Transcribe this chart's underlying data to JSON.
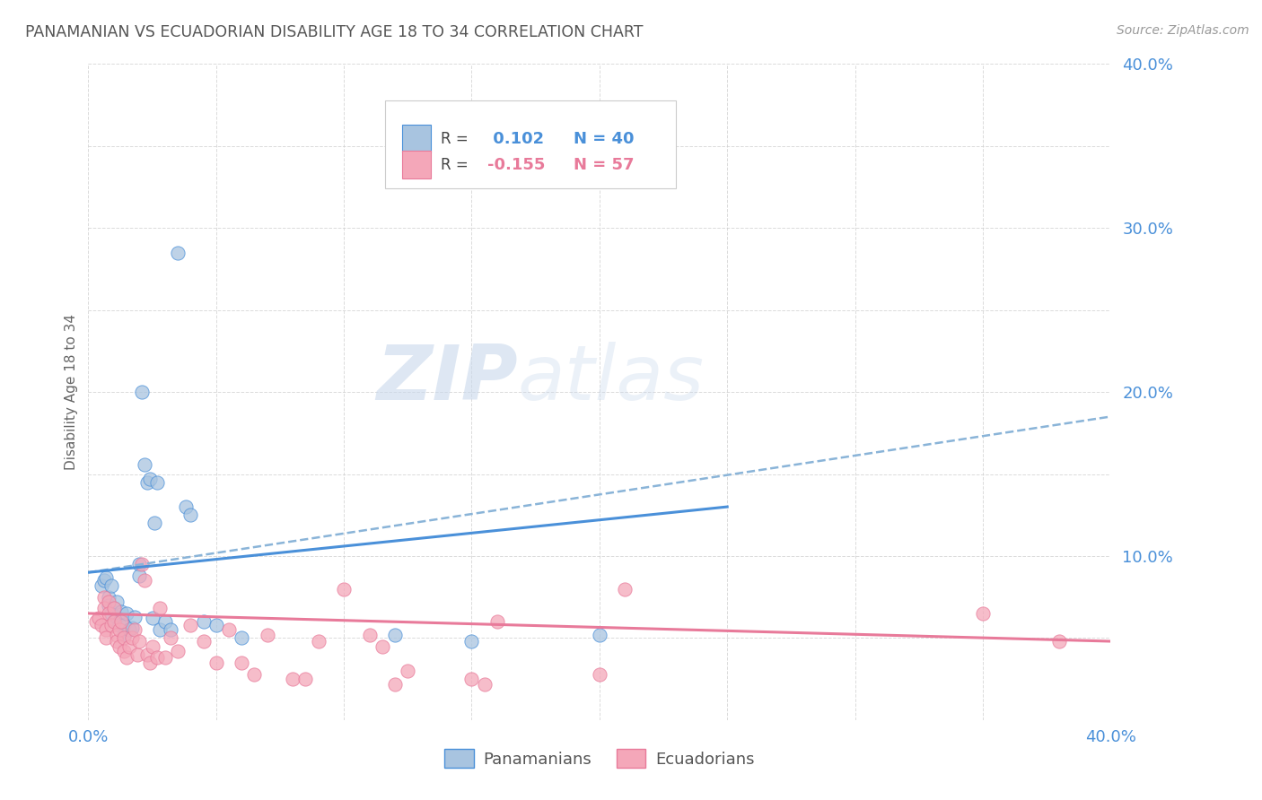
{
  "title": "PANAMANIAN VS ECUADORIAN DISABILITY AGE 18 TO 34 CORRELATION CHART",
  "source": "Source: ZipAtlas.com",
  "ylabel": "Disability Age 18 to 34",
  "xlim": [
    0.0,
    0.4
  ],
  "ylim": [
    0.0,
    0.4
  ],
  "xticks": [
    0.0,
    0.05,
    0.1,
    0.15,
    0.2,
    0.25,
    0.3,
    0.35,
    0.4
  ],
  "yticks": [
    0.0,
    0.05,
    0.1,
    0.15,
    0.2,
    0.25,
    0.3,
    0.35,
    0.4
  ],
  "background_color": "#ffffff",
  "watermark_zip": "ZIP",
  "watermark_atlas": "atlas",
  "legend_r_panama": "0.102",
  "legend_n_panama": "40",
  "legend_r_ecuador": "-0.155",
  "legend_n_ecuador": "57",
  "panama_color": "#a8c4e0",
  "ecuador_color": "#f4a7b9",
  "panama_line_color": "#4a90d9",
  "ecuador_line_color": "#e87a9a",
  "dashed_line_color": "#8ab4d8",
  "tick_label_color": "#4a90d9",
  "xlabel_color": "#4a90d9",
  "title_color": "#555555",
  "panama_points": [
    [
      0.005,
      0.082
    ],
    [
      0.006,
      0.085
    ],
    [
      0.007,
      0.087
    ],
    [
      0.008,
      0.075
    ],
    [
      0.008,
      0.07
    ],
    [
      0.009,
      0.065
    ],
    [
      0.009,
      0.082
    ],
    [
      0.01,
      0.06
    ],
    [
      0.01,
      0.068
    ],
    [
      0.011,
      0.072
    ],
    [
      0.011,
      0.063
    ],
    [
      0.012,
      0.058
    ],
    [
      0.013,
      0.066
    ],
    [
      0.014,
      0.058
    ],
    [
      0.014,
      0.052
    ],
    [
      0.015,
      0.065
    ],
    [
      0.016,
      0.055
    ],
    [
      0.017,
      0.056
    ],
    [
      0.018,
      0.063
    ],
    [
      0.02,
      0.095
    ],
    [
      0.02,
      0.088
    ],
    [
      0.021,
      0.2
    ],
    [
      0.022,
      0.156
    ],
    [
      0.023,
      0.145
    ],
    [
      0.024,
      0.147
    ],
    [
      0.025,
      0.062
    ],
    [
      0.026,
      0.12
    ],
    [
      0.027,
      0.145
    ],
    [
      0.028,
      0.055
    ],
    [
      0.03,
      0.06
    ],
    [
      0.032,
      0.055
    ],
    [
      0.035,
      0.285
    ],
    [
      0.038,
      0.13
    ],
    [
      0.04,
      0.125
    ],
    [
      0.045,
      0.06
    ],
    [
      0.05,
      0.058
    ],
    [
      0.06,
      0.05
    ],
    [
      0.12,
      0.052
    ],
    [
      0.15,
      0.048
    ],
    [
      0.2,
      0.052
    ]
  ],
  "ecuador_points": [
    [
      0.003,
      0.06
    ],
    [
      0.004,
      0.062
    ],
    [
      0.005,
      0.058
    ],
    [
      0.006,
      0.075
    ],
    [
      0.006,
      0.068
    ],
    [
      0.007,
      0.055
    ],
    [
      0.007,
      0.05
    ],
    [
      0.008,
      0.072
    ],
    [
      0.008,
      0.065
    ],
    [
      0.009,
      0.058
    ],
    [
      0.01,
      0.068
    ],
    [
      0.01,
      0.06
    ],
    [
      0.011,
      0.052
    ],
    [
      0.011,
      0.048
    ],
    [
      0.012,
      0.055
    ],
    [
      0.012,
      0.045
    ],
    [
      0.013,
      0.06
    ],
    [
      0.014,
      0.05
    ],
    [
      0.014,
      0.042
    ],
    [
      0.015,
      0.038
    ],
    [
      0.016,
      0.045
    ],
    [
      0.017,
      0.05
    ],
    [
      0.018,
      0.055
    ],
    [
      0.019,
      0.04
    ],
    [
      0.02,
      0.048
    ],
    [
      0.021,
      0.095
    ],
    [
      0.022,
      0.085
    ],
    [
      0.023,
      0.04
    ],
    [
      0.024,
      0.035
    ],
    [
      0.025,
      0.045
    ],
    [
      0.027,
      0.038
    ],
    [
      0.028,
      0.068
    ],
    [
      0.03,
      0.038
    ],
    [
      0.032,
      0.05
    ],
    [
      0.035,
      0.042
    ],
    [
      0.04,
      0.058
    ],
    [
      0.045,
      0.048
    ],
    [
      0.05,
      0.035
    ],
    [
      0.055,
      0.055
    ],
    [
      0.06,
      0.035
    ],
    [
      0.065,
      0.028
    ],
    [
      0.07,
      0.052
    ],
    [
      0.08,
      0.025
    ],
    [
      0.085,
      0.025
    ],
    [
      0.09,
      0.048
    ],
    [
      0.1,
      0.08
    ],
    [
      0.11,
      0.052
    ],
    [
      0.115,
      0.045
    ],
    [
      0.12,
      0.022
    ],
    [
      0.125,
      0.03
    ],
    [
      0.15,
      0.025
    ],
    [
      0.155,
      0.022
    ],
    [
      0.16,
      0.06
    ],
    [
      0.2,
      0.028
    ],
    [
      0.21,
      0.08
    ],
    [
      0.35,
      0.065
    ],
    [
      0.38,
      0.048
    ]
  ],
  "panama_trendline": [
    [
      0.0,
      0.09
    ],
    [
      0.25,
      0.13
    ]
  ],
  "ecuador_trendline": [
    [
      0.0,
      0.065
    ],
    [
      0.4,
      0.048
    ]
  ],
  "dashed_trendline": [
    [
      0.0,
      0.09
    ],
    [
      0.4,
      0.185
    ]
  ]
}
